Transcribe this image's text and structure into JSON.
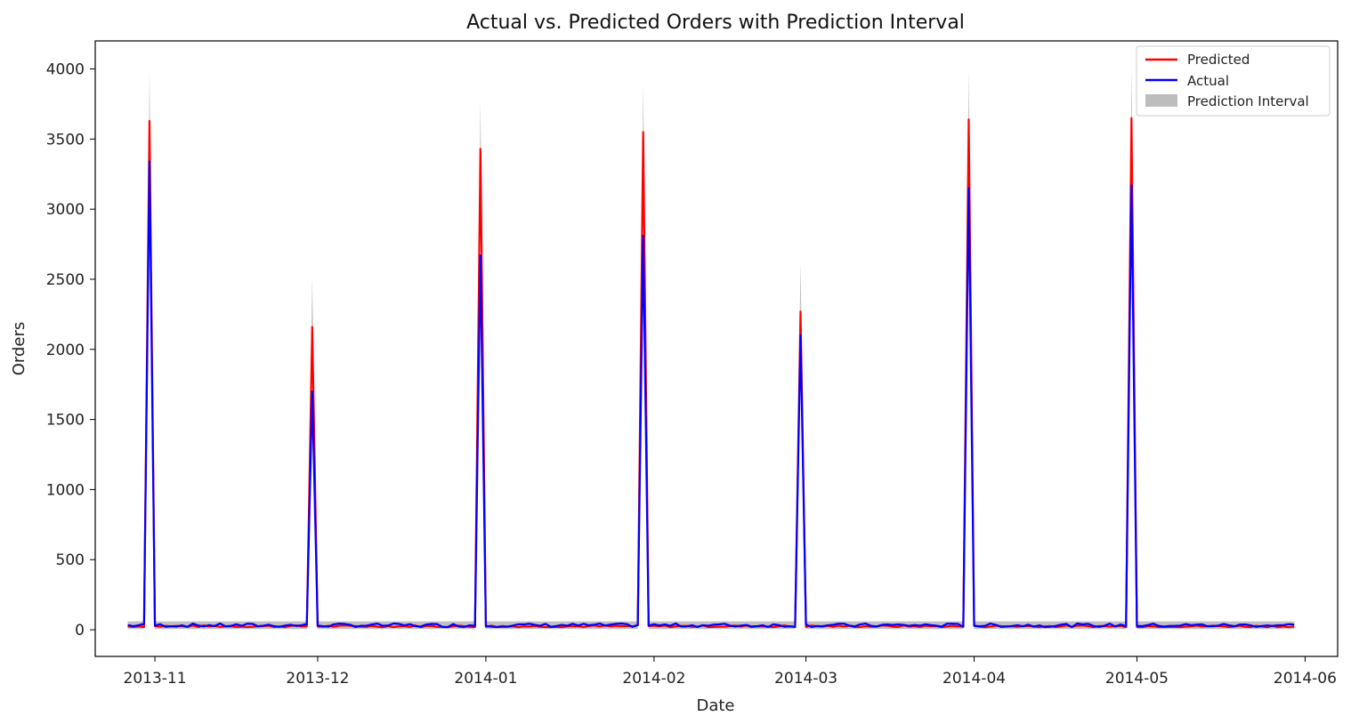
{
  "chart_data": {
    "type": "line",
    "title": "Actual vs. Predicted Orders with Prediction Interval",
    "xlabel": "Date",
    "ylabel": "Orders",
    "xlim": [
      "2013-10-21",
      "2014-06-07"
    ],
    "ylim": [
      -190,
      4200
    ],
    "x_ticks": [
      "2013-11-01",
      "2013-12-01",
      "2014-01-01",
      "2014-02-01",
      "2014-03-01",
      "2014-04-01",
      "2014-05-01",
      "2014-06-01"
    ],
    "x_tick_labels": [
      "2013-11",
      "2013-12",
      "2014-01",
      "2014-02",
      "2014-03",
      "2014-04",
      "2014-05",
      "2014-06"
    ],
    "y_ticks": [
      0,
      500,
      1000,
      1500,
      2000,
      2500,
      3000,
      3500,
      4000
    ],
    "y_tick_labels": [
      "0",
      "500",
      "1000",
      "1500",
      "2000",
      "2500",
      "3000",
      "3500",
      "4000"
    ],
    "date_range": [
      "2013-10-27",
      "2014-05-30"
    ],
    "baseline": {
      "predicted": 25,
      "actual": 32,
      "interval_lower": 5,
      "interval_upper": 60
    },
    "spikes": [
      {
        "date": "2013-10-31",
        "predicted": 3630,
        "actual": 3340,
        "upper": 3980
      },
      {
        "date": "2013-11-30",
        "predicted": 2160,
        "actual": 1700,
        "upper": 2510
      },
      {
        "date": "2013-12-31",
        "predicted": 3430,
        "actual": 2670,
        "upper": 3780
      },
      {
        "date": "2014-01-30",
        "predicted": 3550,
        "actual": 2810,
        "upper": 3900
      },
      {
        "date": "2014-02-28",
        "predicted": 2270,
        "actual": 2100,
        "upper": 2620
      },
      {
        "date": "2014-03-31",
        "predicted": 3640,
        "actual": 3150,
        "upper": 3990
      },
      {
        "date": "2014-04-30",
        "predicted": 3650,
        "actual": 3170,
        "upper": 4000
      }
    ],
    "series": [
      {
        "name": "Predicted",
        "color": "#ff0000"
      },
      {
        "name": "Actual",
        "color": "#0000ff"
      }
    ],
    "interval": {
      "name": "Prediction Interval",
      "color": "#bdbdbd"
    },
    "legend_position": "top-right",
    "grid": false
  }
}
